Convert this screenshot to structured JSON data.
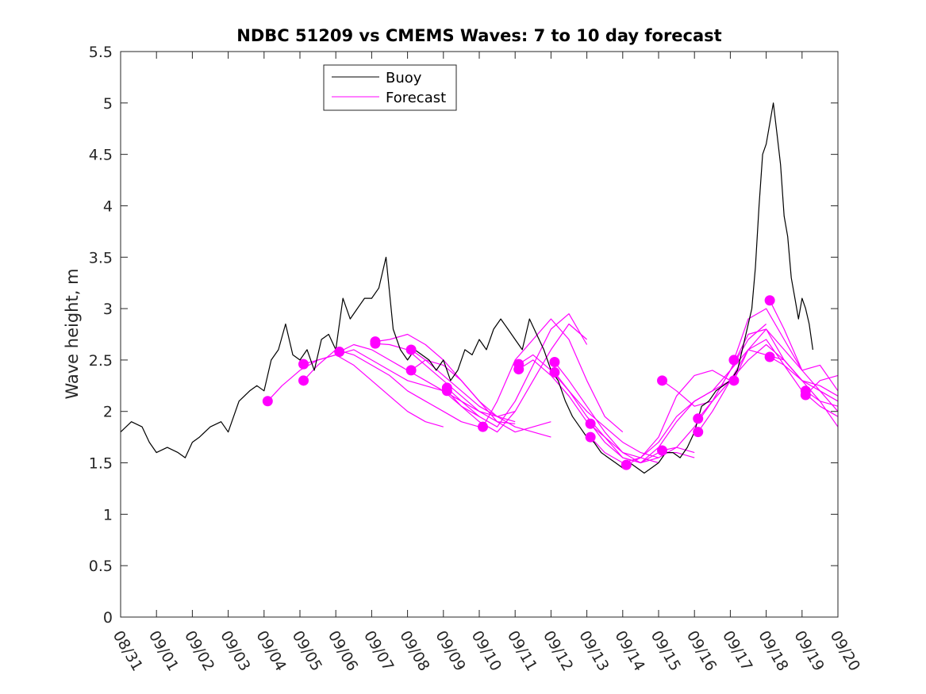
{
  "chart_data": {
    "type": "line",
    "title": "NDBC 51209 vs CMEMS Waves: 7 to 10 day forecast",
    "xlabel": "",
    "ylabel": "Wave height, m",
    "x_unit": "days since 08/31",
    "xlim": [
      0,
      20
    ],
    "ylim": [
      0,
      5.5
    ],
    "yticks": [
      0,
      0.5,
      1,
      1.5,
      2,
      2.5,
      3,
      3.5,
      4,
      4.5,
      5,
      5.5
    ],
    "ytick_labels": [
      "0",
      "0.5",
      "1",
      "1.5",
      "2",
      "2.5",
      "3",
      "3.5",
      "4",
      "4.5",
      "5",
      "5.5"
    ],
    "xtick_labels": [
      "08/31",
      "09/01",
      "09/02",
      "09/03",
      "09/04",
      "09/05",
      "09/06",
      "09/07",
      "09/08",
      "09/09",
      "09/10",
      "09/11",
      "09/12",
      "09/13",
      "09/14",
      "09/15",
      "09/16",
      "09/17",
      "09/18",
      "09/19",
      "09/20"
    ],
    "legend": {
      "position": "top-left",
      "entries": [
        {
          "name": "Buoy",
          "color": "#000000"
        },
        {
          "name": "Forecast",
          "color": "#ff00ff"
        }
      ]
    },
    "buoy": {
      "name": "Buoy",
      "color": "#000000",
      "x": [
        0,
        0.3,
        0.6,
        0.8,
        1.0,
        1.3,
        1.6,
        1.8,
        2.0,
        2.2,
        2.5,
        2.8,
        3.0,
        3.3,
        3.6,
        3.8,
        4.0,
        4.2,
        4.4,
        4.6,
        4.8,
        5.0,
        5.2,
        5.4,
        5.6,
        5.8,
        6.0,
        6.2,
        6.4,
        6.6,
        6.8,
        7.0,
        7.2,
        7.4,
        7.6,
        7.8,
        8.0,
        8.2,
        8.4,
        8.6,
        8.8,
        9.0,
        9.2,
        9.4,
        9.6,
        9.8,
        10.0,
        10.2,
        10.4,
        10.6,
        10.8,
        11.0,
        11.2,
        11.4,
        11.6,
        11.8,
        12.0,
        12.2,
        12.4,
        12.6,
        12.8,
        13.0,
        13.2,
        13.4,
        13.6,
        13.8,
        14.0,
        14.2,
        14.4,
        14.6,
        14.8,
        15.0,
        15.2,
        15.4,
        15.6,
        15.8,
        16.0,
        16.2,
        16.4,
        16.6,
        16.8,
        17.0,
        17.2,
        17.4,
        17.6,
        17.7,
        17.8,
        17.9,
        18.0,
        18.1,
        18.2,
        18.3,
        18.4,
        18.5,
        18.6,
        18.7,
        18.8,
        18.9,
        19.0,
        19.1,
        19.2,
        19.3
      ],
      "y": [
        1.8,
        1.9,
        1.85,
        1.7,
        1.6,
        1.65,
        1.6,
        1.55,
        1.7,
        1.75,
        1.85,
        1.9,
        1.8,
        2.1,
        2.2,
        2.25,
        2.2,
        2.5,
        2.6,
        2.85,
        2.55,
        2.5,
        2.6,
        2.4,
        2.7,
        2.75,
        2.6,
        3.1,
        2.9,
        3.0,
        3.1,
        3.1,
        3.2,
        3.5,
        2.8,
        2.6,
        2.5,
        2.6,
        2.55,
        2.5,
        2.4,
        2.5,
        2.3,
        2.4,
        2.6,
        2.55,
        2.7,
        2.6,
        2.8,
        2.9,
        2.8,
        2.7,
        2.6,
        2.9,
        2.75,
        2.6,
        2.4,
        2.3,
        2.1,
        1.95,
        1.85,
        1.75,
        1.7,
        1.6,
        1.55,
        1.5,
        1.45,
        1.5,
        1.45,
        1.4,
        1.45,
        1.5,
        1.6,
        1.6,
        1.55,
        1.65,
        1.8,
        2.05,
        2.1,
        2.2,
        2.25,
        2.3,
        2.4,
        2.7,
        3.0,
        3.4,
        4.0,
        4.5,
        4.6,
        4.8,
        5.0,
        4.7,
        4.4,
        3.9,
        3.7,
        3.3,
        3.1,
        2.9,
        3.1,
        3.0,
        2.85,
        2.6
      ]
    },
    "forecasts": [
      {
        "name": "Forecast",
        "x": [
          4.1,
          4.5,
          5.0,
          5.5,
          6.0,
          6.5,
          7.0,
          7.5,
          8.0,
          8.5,
          9.0
        ],
        "y": [
          2.1,
          2.25,
          2.4,
          2.5,
          2.55,
          2.45,
          2.3,
          2.15,
          2.0,
          1.9,
          1.85
        ]
      },
      {
        "name": "Forecast",
        "x": [
          5.1,
          5.5,
          6.0,
          6.5,
          7.0,
          7.5,
          8.0,
          8.5,
          9.0,
          9.5,
          10.0
        ],
        "y": [
          2.3,
          2.45,
          2.6,
          2.55,
          2.45,
          2.35,
          2.2,
          2.1,
          2.0,
          1.9,
          1.85
        ]
      },
      {
        "name": "Forecast",
        "x": [
          5.1,
          5.5,
          6.0,
          6.5,
          7.0,
          7.5,
          8.0,
          8.5,
          9.0,
          9.5,
          10.0
        ],
        "y": [
          2.46,
          2.5,
          2.55,
          2.6,
          2.5,
          2.4,
          2.3,
          2.25,
          2.2,
          2.05,
          1.95
        ]
      },
      {
        "name": "Forecast",
        "x": [
          6.1,
          6.5,
          7.0,
          7.5,
          8.0,
          8.5,
          9.0,
          9.5,
          10.0,
          10.5,
          11.0
        ],
        "y": [
          2.58,
          2.65,
          2.6,
          2.5,
          2.4,
          2.3,
          2.2,
          2.1,
          2.0,
          1.95,
          1.9
        ]
      },
      {
        "name": "Forecast",
        "x": [
          7.1,
          7.5,
          8.0,
          8.5,
          9.0,
          9.5,
          10.0,
          10.5,
          11.0
        ],
        "y": [
          2.68,
          2.7,
          2.75,
          2.65,
          2.5,
          2.3,
          2.1,
          1.95,
          2.0
        ]
      },
      {
        "name": "Forecast",
        "x": [
          7.1,
          7.5,
          8.0,
          8.5,
          9.0,
          9.5,
          10.0,
          10.5,
          11.0
        ],
        "y": [
          2.66,
          2.65,
          2.6,
          2.45,
          2.3,
          2.15,
          2.0,
          1.9,
          1.88
        ]
      },
      {
        "name": "Forecast",
        "x": [
          8.1,
          8.5,
          9.0,
          9.5,
          10.0,
          10.5,
          11.0,
          11.5,
          12.0
        ],
        "y": [
          2.6,
          2.5,
          2.35,
          2.2,
          2.05,
          1.95,
          1.85,
          1.8,
          1.75
        ]
      },
      {
        "name": "Forecast",
        "x": [
          8.1,
          8.5,
          9.0,
          9.5,
          10.0,
          10.5,
          11.0,
          11.5,
          12.0
        ],
        "y": [
          2.4,
          2.5,
          2.45,
          2.3,
          2.1,
          1.9,
          1.8,
          1.85,
          1.9
        ]
      },
      {
        "name": "Forecast",
        "x": [
          9.1,
          9.5,
          10.0,
          10.5,
          11.0,
          11.5,
          12.0,
          12.5,
          13.0
        ],
        "y": [
          2.23,
          2.1,
          1.95,
          1.85,
          2.1,
          2.45,
          2.8,
          2.95,
          2.65
        ]
      },
      {
        "name": "Forecast",
        "x": [
          9.1,
          9.5,
          10.0,
          10.5,
          11.0,
          11.5,
          12.0,
          12.5,
          13.0
        ],
        "y": [
          2.2,
          2.05,
          1.9,
          1.8,
          2.0,
          2.3,
          2.6,
          2.85,
          2.7
        ]
      },
      {
        "name": "Forecast",
        "x": [
          10.1,
          10.5,
          11.0,
          11.5,
          12.0,
          12.5,
          13.0,
          13.5,
          14.0
        ],
        "y": [
          1.85,
          2.1,
          2.5,
          2.7,
          2.9,
          2.7,
          2.3,
          1.95,
          1.8
        ]
      },
      {
        "name": "Forecast",
        "x": [
          11.1,
          11.5,
          12.0,
          12.5,
          13.0,
          13.5,
          14.0,
          14.5,
          15.0
        ],
        "y": [
          2.46,
          2.55,
          2.4,
          2.2,
          2.0,
          1.85,
          1.7,
          1.6,
          1.55
        ]
      },
      {
        "name": "Forecast",
        "x": [
          11.1,
          11.5,
          12.0,
          12.5,
          13.0,
          13.5,
          14.0,
          14.5,
          15.0
        ],
        "y": [
          2.41,
          2.5,
          2.35,
          2.15,
          1.9,
          1.75,
          1.6,
          1.55,
          1.5
        ]
      },
      {
        "name": "Forecast",
        "x": [
          12.1,
          12.5,
          13.0,
          13.5,
          14.0,
          14.5,
          15.0,
          15.5,
          16.0
        ],
        "y": [
          2.48,
          2.3,
          2.05,
          1.8,
          1.6,
          1.5,
          1.55,
          1.65,
          1.6
        ]
      },
      {
        "name": "Forecast",
        "x": [
          12.1,
          12.5,
          13.0,
          13.5,
          14.0,
          14.5,
          15.0,
          15.5,
          16.0
        ],
        "y": [
          2.38,
          2.2,
          1.95,
          1.75,
          1.55,
          1.5,
          1.6,
          1.6,
          1.55
        ]
      },
      {
        "name": "Forecast",
        "x": [
          13.1,
          13.5,
          14.0,
          14.5,
          15.0,
          15.5,
          16.0,
          16.5,
          17.0
        ],
        "y": [
          1.88,
          1.7,
          1.55,
          1.5,
          1.65,
          1.9,
          2.1,
          2.2,
          2.3
        ]
      },
      {
        "name": "Forecast",
        "x": [
          13.1,
          13.5,
          14.0,
          14.5,
          15.0,
          15.5,
          16.0,
          16.5,
          17.0
        ],
        "y": [
          1.75,
          1.6,
          1.5,
          1.55,
          1.75,
          2.15,
          2.35,
          2.4,
          2.3
        ]
      },
      {
        "name": "Forecast",
        "x": [
          14.1,
          14.5,
          15.0,
          15.5,
          16.0,
          16.5,
          17.0,
          17.5,
          18.0
        ],
        "y": [
          1.48,
          1.55,
          1.7,
          1.95,
          2.1,
          2.2,
          2.4,
          2.7,
          2.85
        ]
      },
      {
        "name": "Forecast",
        "x": [
          15.1,
          15.5,
          16.0,
          16.5,
          17.0,
          17.5,
          18.0,
          18.5,
          19.0
        ],
        "y": [
          2.3,
          2.2,
          2.05,
          2.1,
          2.3,
          2.5,
          2.65,
          2.5,
          2.3
        ]
      },
      {
        "name": "Forecast",
        "x": [
          15.1,
          15.5,
          16.0,
          16.5,
          17.0,
          17.5,
          18.0,
          18.5,
          19.0
        ],
        "y": [
          1.62,
          1.65,
          1.85,
          2.1,
          2.4,
          2.6,
          2.8,
          2.6,
          2.4
        ]
      },
      {
        "name": "Forecast",
        "x": [
          16.1,
          16.5,
          17.0,
          17.5,
          18.0,
          18.5,
          19.0,
          19.5,
          20.0
        ],
        "y": [
          1.93,
          2.1,
          2.4,
          2.75,
          2.8,
          2.5,
          2.3,
          2.2,
          2.1
        ]
      },
      {
        "name": "Forecast",
        "x": [
          16.1,
          16.5,
          17.0,
          17.5,
          18.0,
          18.5,
          19.0,
          19.5,
          20.0
        ],
        "y": [
          1.8,
          2.0,
          2.3,
          2.6,
          2.7,
          2.45,
          2.2,
          2.05,
          1.95
        ]
      },
      {
        "name": "Forecast",
        "x": [
          17.1,
          17.5,
          18.0,
          18.5,
          19.0,
          19.5,
          20.0
        ],
        "y": [
          2.5,
          2.9,
          3.0,
          2.7,
          2.4,
          2.2,
          2.0
        ]
      },
      {
        "name": "Forecast",
        "x": [
          17.1,
          17.5,
          18.0,
          18.5,
          19.0,
          19.5,
          20.0
        ],
        "y": [
          2.3,
          2.6,
          2.55,
          2.5,
          2.3,
          2.1,
          1.85
        ]
      },
      {
        "name": "Forecast",
        "x": [
          18.1,
          18.5,
          19.0,
          19.5,
          20.0
        ],
        "y": [
          3.08,
          2.8,
          2.4,
          2.45,
          2.2
        ]
      },
      {
        "name": "Forecast",
        "x": [
          18.1,
          18.5,
          19.0,
          19.5,
          20.0
        ],
        "y": [
          2.53,
          2.45,
          2.3,
          2.25,
          2.15
        ]
      },
      {
        "name": "Forecast",
        "x": [
          19.1,
          19.5,
          20.0
        ],
        "y": [
          2.2,
          2.1,
          2.05
        ]
      },
      {
        "name": "Forecast",
        "x": [
          19.1,
          19.5,
          20.0
        ],
        "y": [
          2.16,
          2.3,
          2.35
        ]
      }
    ]
  }
}
